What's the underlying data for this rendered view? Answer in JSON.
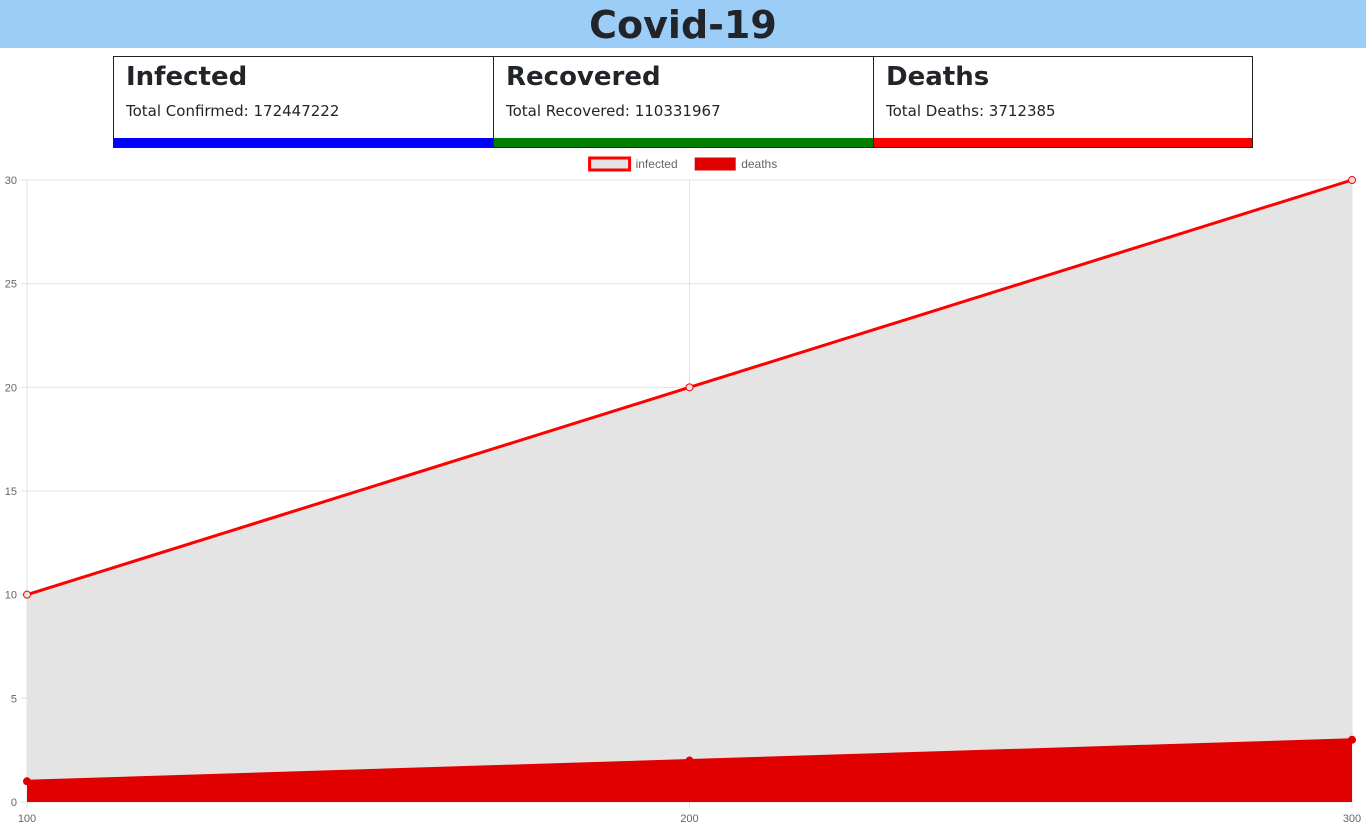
{
  "header": {
    "title": "Covid-19"
  },
  "cards": [
    {
      "title": "Infected",
      "label": "Total Confirmed: ",
      "value": "172447222",
      "color": "#0000ff"
    },
    {
      "title": "Recovered",
      "label": "Total Recovered: ",
      "value": "110331967",
      "color": "#008000"
    },
    {
      "title": "Deaths",
      "label": "Total Deaths: ",
      "value": "3712385",
      "color": "#ff0000"
    }
  ],
  "chart_data": {
    "type": "area",
    "x": [
      100,
      200,
      300
    ],
    "series": [
      {
        "name": "infected",
        "values": [
          10,
          20,
          30
        ],
        "border": "#ff0000",
        "fill": "#e4e4e4"
      },
      {
        "name": "deaths",
        "values": [
          1,
          2,
          3
        ],
        "border": "#e00000",
        "fill": "#e00000"
      }
    ],
    "ylim": [
      0,
      30
    ],
    "yticks": [
      0,
      5,
      10,
      15,
      20,
      25,
      30
    ],
    "xlim": [
      100,
      300
    ],
    "xticks": [
      100,
      200,
      300
    ],
    "legend": "top-center",
    "grid": true
  }
}
